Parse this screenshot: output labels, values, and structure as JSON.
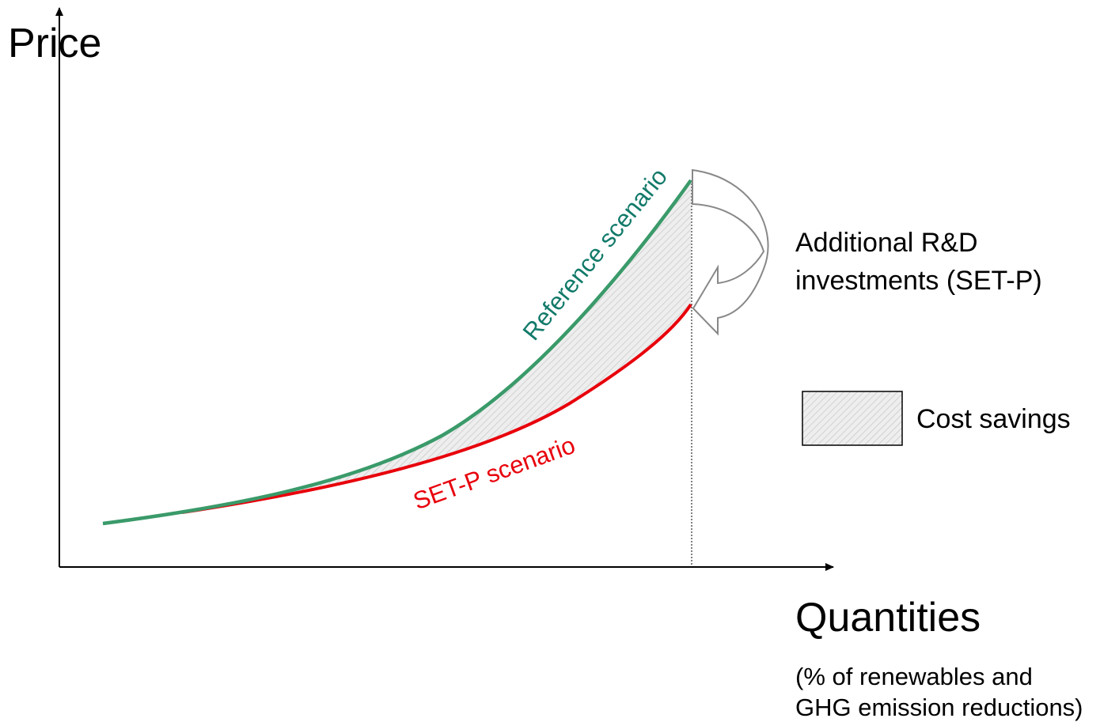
{
  "axes": {
    "y_label": "Price",
    "x_label": "Quantities",
    "x_note": [
      "(% of renewables and",
      "GHG emission reductions)"
    ]
  },
  "curves": {
    "reference": "Reference scenario",
    "setp": "SET-P scenario"
  },
  "annotation": [
    "Additional R&D",
    "investments (SET-P)"
  ],
  "legend": {
    "label": "Cost savings"
  }
}
